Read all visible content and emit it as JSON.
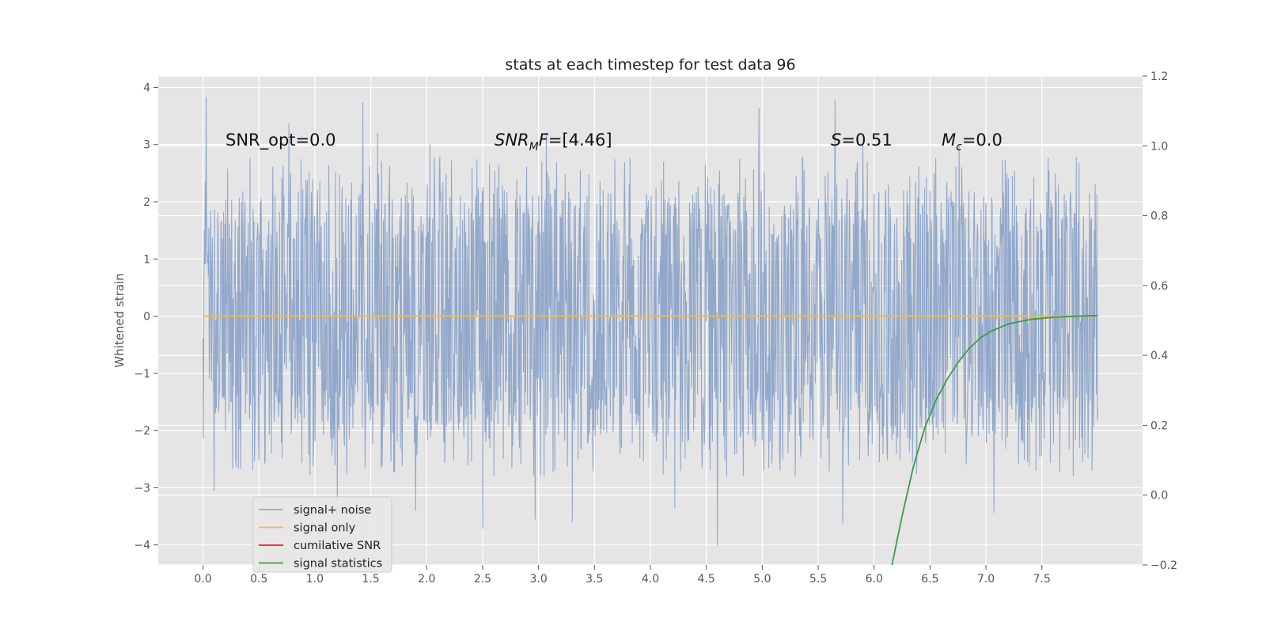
{
  "chart_data": {
    "type": "line",
    "title": "stats at each timestep for test data 96",
    "ylabel": "Whitened strain",
    "xlabel": "",
    "xlim": [
      -0.4,
      8.4
    ],
    "ylim": [
      -4.35,
      4.2
    ],
    "y2lim": [
      -0.2,
      1.2
    ],
    "xticks": [
      "0.0",
      "0.5",
      "1.0",
      "1.5",
      "2.0",
      "2.5",
      "3.0",
      "3.5",
      "4.0",
      "4.5",
      "5.0",
      "5.5",
      "6.0",
      "6.5",
      "7.0",
      "7.5"
    ],
    "yticks": [
      "4",
      "3",
      "2",
      "1",
      "0",
      "−1",
      "−2",
      "−3",
      "−4"
    ],
    "y2ticks": [
      "1.2",
      "1.0",
      "0.8",
      "0.6",
      "0.4",
      "0.2",
      "0.0",
      "−0.2"
    ],
    "grid": true,
    "legend_position": "lower-left",
    "annotations": [
      {
        "label": "SNR_opt=0.0"
      },
      {
        "label": "SNR_MF=[4.46]",
        "main": "SNR",
        "sub": "M",
        "rest": "F=[4.46]"
      },
      {
        "label": "S=0.51",
        "main": "S",
        "rest": "=0.51"
      },
      {
        "label": "M_c=0.0",
        "main": "M",
        "sub": "c",
        "rest": "=0.0"
      }
    ],
    "series": [
      {
        "name": "signal+ noise",
        "color": "#92a8cb",
        "axis": "left",
        "x_range": [
          0.0,
          8.0
        ],
        "sample_count": 2000,
        "envelope": {
          "upper": [
            1.8,
            2.5
          ],
          "lower": [
            -1.5,
            -2.2
          ]
        },
        "peaks": [
          {
            "x": 0.03,
            "y": 3.82
          },
          {
            "x": 0.77,
            "y": 3.37
          },
          {
            "x": 1.43,
            "y": 3.73
          },
          {
            "x": 1.56,
            "y": 3.2
          },
          {
            "x": 2.03,
            "y": 3.0
          },
          {
            "x": 3.07,
            "y": 3.2
          },
          {
            "x": 4.97,
            "y": 3.63
          },
          {
            "x": 5.65,
            "y": 3.77
          },
          {
            "x": 5.9,
            "y": 3.0
          },
          {
            "x": 6.76,
            "y": 3.0
          },
          {
            "x": 2.5,
            "y": -3.71
          },
          {
            "x": 2.97,
            "y": -3.55
          },
          {
            "x": 3.3,
            "y": -3.6
          },
          {
            "x": 1.2,
            "y": -3.5
          },
          {
            "x": 1.9,
            "y": -3.4
          },
          {
            "x": 4.6,
            "y": -4.0
          },
          {
            "x": 5.72,
            "y": -3.62
          },
          {
            "x": 7.07,
            "y": -3.43
          },
          {
            "x": 0.1,
            "y": -3.05
          },
          {
            "x": 4.22,
            "y": -3.35
          }
        ]
      },
      {
        "name": "signal only",
        "color": "#f0b94e",
        "axis": "left",
        "x": [
          0.0,
          8.0
        ],
        "y": [
          0.0,
          0.0
        ]
      },
      {
        "name": "cumilative SNR",
        "color": "#e3291b",
        "axis": "right",
        "x": [],
        "y": []
      },
      {
        "name": "signal statistics",
        "color": "#3d9a47",
        "axis": "right",
        "x": [
          6.16,
          6.25,
          6.35,
          6.45,
          6.55,
          6.65,
          6.75,
          6.85,
          6.95,
          7.05,
          7.2,
          7.4,
          7.6,
          7.8,
          8.0
        ],
        "y": [
          -0.2,
          -0.06,
          0.08,
          0.19,
          0.27,
          0.33,
          0.38,
          0.42,
          0.45,
          0.47,
          0.49,
          0.503,
          0.509,
          0.512,
          0.514
        ]
      }
    ]
  }
}
